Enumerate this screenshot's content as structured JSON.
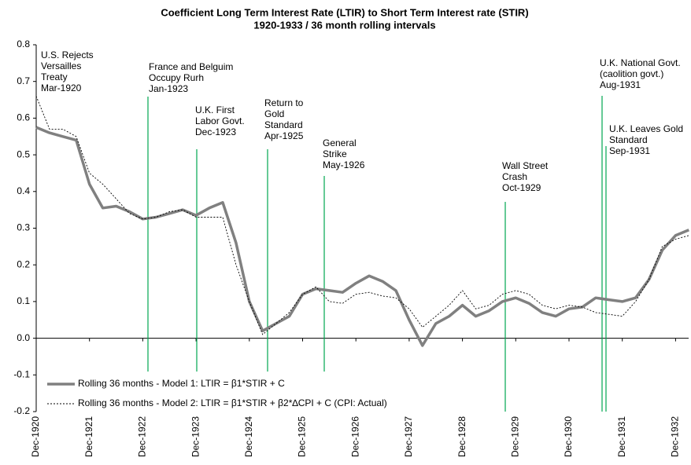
{
  "chart_data": {
    "type": "line",
    "title": "Coefficient Long Term Interest Rate (LTIR) to Short Term Interest rate (STIR)",
    "subtitle": "1920-1933 / 36 month rolling intervals",
    "categories": [
      "Dec-1920",
      null,
      null,
      null,
      "Dec-1921",
      null,
      null,
      null,
      "Dec-1922",
      null,
      null,
      null,
      "Dec-1923",
      null,
      null,
      null,
      "Dec-1924",
      null,
      null,
      null,
      "Dec-1925",
      null,
      null,
      null,
      "Dec-1926",
      null,
      null,
      null,
      "Dec-1927",
      null,
      null,
      null,
      "Dec-1928",
      null,
      null,
      null,
      "Dec-1929",
      null,
      null,
      null,
      "Dec-1930",
      null,
      null,
      null,
      "Dec-1931",
      null,
      null,
      null,
      "Dec-1932",
      null
    ],
    "series": [
      {
        "name": "Rolling 36 months - Model 1: LTIR = β1*STIR + C",
        "color": "#808080",
        "style": "solid",
        "values": [
          0.575,
          0.56,
          0.55,
          0.54,
          0.42,
          0.355,
          0.36,
          0.345,
          0.325,
          0.33,
          0.34,
          0.35,
          0.335,
          0.355,
          0.37,
          0.26,
          0.1,
          0.02,
          0.04,
          0.06,
          0.12,
          0.135,
          0.13,
          0.125,
          0.15,
          0.17,
          0.155,
          0.13,
          0.05,
          -0.02,
          0.04,
          0.06,
          0.09,
          0.06,
          0.075,
          0.1,
          0.11,
          0.095,
          0.07,
          0.06,
          0.08,
          0.085,
          0.11,
          0.105,
          0.1,
          0.11,
          0.16,
          0.24,
          0.28,
          0.295
        ]
      },
      {
        "name": "Rolling 36 months - Model 2: LTIR = β1*STIR + β2*∆CPI + C  (CPI: Actual)",
        "color": "#000000",
        "style": "dashed",
        "values": [
          0.66,
          0.57,
          0.57,
          0.55,
          0.45,
          0.42,
          0.38,
          0.34,
          0.325,
          0.33,
          0.345,
          0.35,
          0.33,
          0.33,
          0.33,
          0.2,
          0.1,
          0.01,
          0.04,
          0.07,
          0.12,
          0.14,
          0.1,
          0.095,
          0.12,
          0.125,
          0.115,
          0.11,
          0.08,
          0.03,
          0.06,
          0.09,
          0.13,
          0.08,
          0.09,
          0.12,
          0.13,
          0.12,
          0.09,
          0.08,
          0.09,
          0.085,
          0.07,
          0.065,
          0.06,
          0.1,
          0.16,
          0.25,
          0.27,
          0.28
        ]
      }
    ],
    "ylim": [
      -0.2,
      0.8
    ],
    "yticks": [
      -0.2,
      -0.1,
      {
        "value": 0,
        "label": "0.0"
      },
      0.1,
      0.2,
      0.3,
      0.4,
      0.5,
      0.6,
      0.7,
      0.8
    ],
    "events": [
      {
        "lines": [
          "U.S. Rejects",
          "Versailles",
          "Treaty",
          "Mar-1920"
        ]
      },
      {
        "lines": [
          "France and Belguim",
          "Occupy Rurh",
          "Jan-1923"
        ]
      },
      {
        "lines": [
          "U.K. First",
          "Labor Govt.",
          "Dec-1923"
        ]
      },
      {
        "lines": [
          "Return to",
          "Gold",
          "Standard",
          "Apr-1925"
        ]
      },
      {
        "lines": [
          "General",
          "Strike",
          "May-1926"
        ]
      },
      {
        "lines": [
          "Wall Street",
          "Crash",
          "Oct-1929"
        ]
      },
      {
        "lines": [
          "U.K. National Govt.",
          "(caolition govt.)",
          "Aug-1931"
        ]
      },
      {
        "lines": [
          "U.K. Leaves Gold",
          "Standard",
          "Sep-1931"
        ]
      }
    ]
  }
}
